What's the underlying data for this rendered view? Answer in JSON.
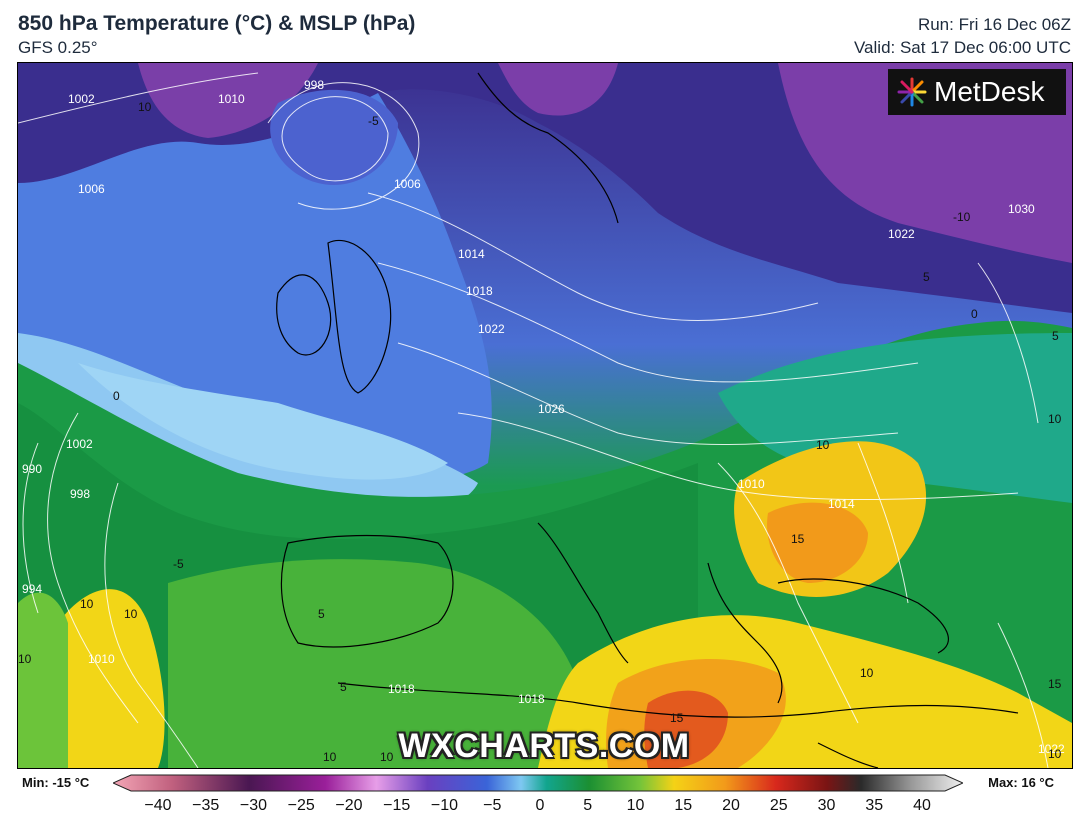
{
  "header": {
    "title": "850 hPa Temperature (°C) & MSLP (hPa)",
    "model": "GFS 0.25°",
    "run": "Run: Fri 16 Dec 06Z",
    "valid": "Valid: Sat 17 Dec 06:00 UTC"
  },
  "brand": {
    "name": "MetDesk",
    "icon": "metdesk-logo-icon"
  },
  "watermark": "WXCHARTS.COM",
  "legend": {
    "min_label": "Min: -15 °C",
    "max_label": "Max: 16 °C",
    "ticks": [
      "−40",
      "−35",
      "−30",
      "−25",
      "−20",
      "−15",
      "−10",
      "−5",
      "0",
      "5",
      "10",
      "15",
      "20",
      "25",
      "30",
      "35",
      "40"
    ]
  },
  "map_labels": {
    "isobars": [
      "998",
      "1002",
      "1006",
      "1010",
      "1014",
      "1018",
      "1022",
      "1026",
      "1030",
      "1010",
      "1014",
      "1018",
      "1022",
      "1002",
      "998",
      "994",
      "990",
      "1006",
      "1010",
      "1018",
      "1022"
    ],
    "isotherms": [
      "10",
      "-5",
      "-10",
      "5",
      "0",
      "-5",
      "0",
      "10",
      "15",
      "15",
      "10",
      "5",
      "10",
      "10",
      "10",
      "5",
      "10",
      "10",
      "10",
      "15",
      "10",
      "5"
    ]
  },
  "colors": {
    "cold_purple": "#7a3fa8",
    "deep_blue": "#3a2f8f",
    "blue": "#4f7de0",
    "light_blue": "#8fc8f2",
    "teal": "#1fa98a",
    "green": "#1c9a3e",
    "lime": "#6cc43a",
    "yellow": "#f2d617",
    "orange": "#f29a1a",
    "red": "#e35a1e"
  }
}
